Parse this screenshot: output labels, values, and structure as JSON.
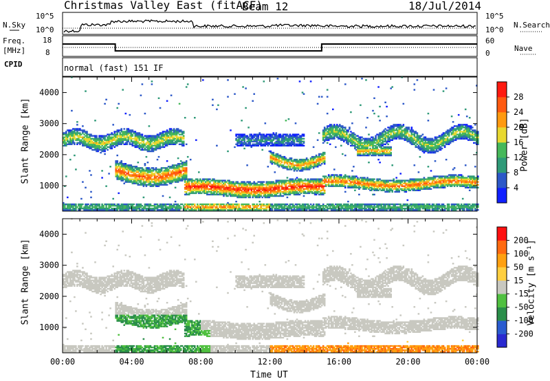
{
  "header": {
    "title": "Christmas Valley East (fitACF)",
    "beam": "Beam 12",
    "date": "18/Jul/2014"
  },
  "side_labels": {
    "nsky": "N.Sky",
    "freq": "Freq.",
    "freq_unit": "[MHz]",
    "cpid": "CPID",
    "nsearch": "N.Search",
    "nave": "Nave",
    "nsky_hi": "10^5",
    "nsky_lo": "10^0",
    "freq_hi": "18",
    "freq_lo": "8",
    "nave_hi": "60",
    "nave_lo": "0"
  },
  "cpid_text": "normal (fast) 151 IF",
  "xaxis": {
    "label": "Time UT",
    "ticks": [
      "00:00",
      "04:00",
      "08:00",
      "12:00",
      "16:00",
      "20:00",
      "00:00"
    ]
  },
  "colors": {
    "power": [
      "#1020ff",
      "#2c58c8",
      "#2f9a78",
      "#46b85a",
      "#e8d830",
      "#ff9a10",
      "#ff5a10",
      "#ff1a10"
    ],
    "velocity": [
      "#ff1010",
      "#ff6a10",
      "#ffa010",
      "#ffcf40",
      "#c8c8c0",
      "#50c040",
      "#2a8e4a",
      "#2a5cd0",
      "#2a2ad0"
    ]
  },
  "chart_data": [
    {
      "type": "heatmap",
      "title": "",
      "xlabel": "Time UT",
      "ylabel": "Slant Range [km]",
      "ylim": [
        180,
        4500
      ],
      "yticks": [
        "1000",
        "2000",
        "3000",
        "4000"
      ],
      "colorbar_label": "Power [dB]",
      "colorbar_ticks": [
        "4",
        "8",
        "12",
        "16",
        "20",
        "24",
        "28"
      ],
      "colorbar_range": [
        0,
        30
      ]
    },
    {
      "type": "heatmap",
      "title": "",
      "xlabel": "Time UT",
      "ylabel": "Slant Range [km]",
      "ylim": [
        180,
        4500
      ],
      "yticks": [
        "1000",
        "2000",
        "3000",
        "4000"
      ],
      "colorbar_label": "Velocity [m s⁻¹]",
      "colorbar_ticks": [
        "200",
        "100",
        "50",
        "15",
        "-15",
        "-50",
        "-100",
        "-200"
      ],
      "colorbar_range": [
        -250,
        250
      ]
    }
  ]
}
